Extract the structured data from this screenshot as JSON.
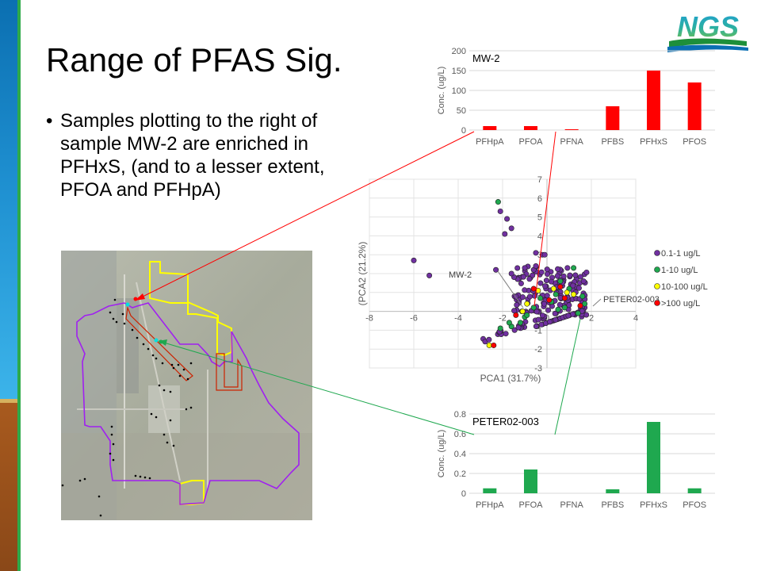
{
  "slide": {
    "title": "Range of PFAS Sig.",
    "bullet": "Samples plotting to the right of sample MW-2 are enriched in PFHxS, (and to a lesser extent, PFOA and PFHpA)",
    "logo_text": "NGS"
  },
  "colors": {
    "sidebar_blue": "#1e8fd0",
    "sidebar_brown": "#8a4818",
    "accent_green": "#2eaa4a",
    "mw2_bars": "#ff0000",
    "peter_bars": "#1fa84f",
    "purple": "#7030a0"
  },
  "chart_data": [
    {
      "type": "bar",
      "label": "MW-2",
      "categories": [
        "PFHpA",
        "PFOA",
        "PFNA",
        "PFBS",
        "PFHxS",
        "PFOS"
      ],
      "values": [
        10,
        10,
        2,
        60,
        150,
        120
      ],
      "ylabel": "Conc. (ug/L)",
      "ylim": [
        0,
        200
      ],
      "yticks": [
        "0",
        "50",
        "100",
        "150",
        "200"
      ],
      "grid": true
    },
    {
      "type": "scatter",
      "xlabel": "PCA1 (31.7%)",
      "ylabel": "(PCA2 (21.2%)",
      "xlim": [
        -8,
        4
      ],
      "ylim": [
        -3,
        7
      ],
      "xticks": [
        "-8",
        "-6",
        "-4",
        "-2",
        "0",
        "2",
        "4"
      ],
      "yticks": [
        "-3",
        "-2",
        "-1",
        "0",
        "1",
        "2",
        "3",
        "4",
        "5",
        "6",
        "7"
      ],
      "legend": [
        "0.1-1 ug/L",
        "1-10 ug/L",
        "10-100 ug/L",
        ">100 ug/L"
      ],
      "callouts": [
        "MW-2",
        "PETER02-003"
      ],
      "grid": true,
      "legend_position": "right"
    },
    {
      "type": "bar",
      "label": "PETER02-003",
      "categories": [
        "PFHpA",
        "PFOA",
        "PFNA",
        "PFBS",
        "PFHxS",
        "PFOS"
      ],
      "values": [
        0.05,
        0.24,
        0.0,
        0.04,
        0.72,
        0.05
      ],
      "ylabel": "Conc. (ug/L)",
      "ylim": [
        0,
        0.8
      ],
      "yticks": [
        "0",
        "0.2",
        "0.4",
        "0.6",
        "0.8"
      ],
      "grid": true
    }
  ]
}
